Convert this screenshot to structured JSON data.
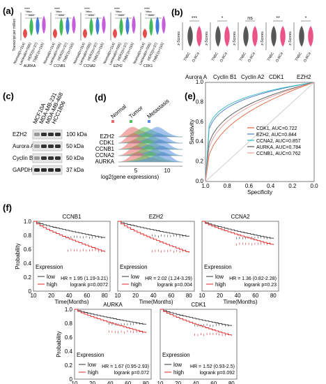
{
  "panels": {
    "a": "(a)",
    "b": "(b)",
    "c": "(c)",
    "d": "(d)",
    "e": "(e)",
    "f": "(f)"
  },
  "panel_a": {
    "ylabel": "Transcript per million",
    "genes": [
      "AURKA",
      "CCNB1",
      "CCNA2",
      "EZH2",
      "CDK1"
    ],
    "groups": [
      "Normal(n=114)",
      "Luminal(n=566)",
      "HER2(n=37)",
      "TNBC(n=116)"
    ],
    "sig": "****",
    "colors": [
      "#e23a3a",
      "#2db34a",
      "#2f6fd6",
      "#c04bd6"
    ]
  },
  "panel_b": {
    "ylabel": "z-Scores",
    "groups": [
      "TNBC",
      "O-BCa"
    ],
    "genes": [
      {
        "name": "Aurora A",
        "sig": "***"
      },
      {
        "name": "Cyclin B1",
        "sig": "*"
      },
      {
        "name": "Cyclin A2",
        "sig": "ns"
      },
      {
        "name": "CDK1",
        "sig": "**"
      },
      {
        "name": "EZH2",
        "sig": "*"
      }
    ],
    "colors": [
      "#444444",
      "#e8417a"
    ]
  },
  "panel_c": {
    "cell_lines": [
      "MCF10A",
      "MDA-MB-231",
      "MDA-MB-468",
      "HCC1806"
    ],
    "rows": [
      {
        "name": "EZH2",
        "kda": "100 kDa"
      },
      {
        "name": "Aurora A",
        "kda": "50 kDa"
      },
      {
        "name": "Cyclin B1",
        "kda": "50 kDa"
      },
      {
        "name": "GAPDH",
        "kda": "37 kDa"
      }
    ]
  },
  "panel_d": {
    "legend": [
      {
        "name": "Normal",
        "color": "#e86a6a"
      },
      {
        "name": "Tumor",
        "color": "#4fbf5a"
      },
      {
        "name": "Metastasis",
        "color": "#5b8fe0"
      }
    ],
    "genes": [
      "EZH2",
      "CDK1",
      "CCNB1",
      "CCNA2",
      "AURKA"
    ],
    "xlabel": "log2(gene expressions)",
    "ticks": [
      "5",
      "10"
    ]
  },
  "chart_data": {
    "type": "line",
    "xlabel": "Specificity",
    "ylabel": "Sensitivity",
    "xticks": [
      "1.0",
      "0.8",
      "0.6",
      "0.4",
      "0.2",
      "0.0"
    ],
    "yticks": [
      "0.0",
      "0.2",
      "0.4",
      "0.6",
      "0.8",
      "1.0"
    ],
    "xlim": [
      1.0,
      0.0
    ],
    "ylim": [
      0.0,
      1.0
    ],
    "legend_position": "bottom-right",
    "series": [
      {
        "name": "CDK1, AUC=0.722",
        "color": "#e0623a",
        "auc": 0.722
      },
      {
        "name": "EZH2, AUC=0.844",
        "color": "#4a78d0",
        "auc": 0.844
      },
      {
        "name": "CCNA2, AUC=0.857",
        "color": "#2fb8b8",
        "auc": 0.857
      },
      {
        "name": "AURKA, AUC=0.784",
        "color": "#555555",
        "auc": 0.784
      },
      {
        "name": "CCNB1, AUC=0.762",
        "color": "#e89a9a",
        "auc": 0.762
      }
    ]
  },
  "panel_f": {
    "ylabel": "Probability",
    "xlabel": "Time(Months)",
    "legend_title": "Expression",
    "low_label": "low",
    "high_label": "high",
    "yticks": [
      "1.0",
      "0.8",
      "0.6",
      "0.4",
      "0.2",
      "0"
    ],
    "xticks": [
      "10",
      "20",
      "40",
      "60",
      "80"
    ],
    "plots": [
      {
        "title": "CCNB1",
        "hr": "HR = 1.95 (1.19-3.21)",
        "p": "logrank p=0.0072",
        "low_end": 0.76,
        "high_end": 0.56
      },
      {
        "title": "EZH2",
        "hr": "HR = 2.02 (1.24-3.29)",
        "p": "logrank p=0.004",
        "low_end": 0.78,
        "high_end": 0.55
      },
      {
        "title": "CCNA2",
        "hr": "HR = 1.36 (0.82-2.28)",
        "p": "logrank p=0.23",
        "low_end": 0.75,
        "high_end": 0.66
      },
      {
        "title": "AURKA",
        "hr": "HR = 1.67 (0.95-2.93)",
        "p": "logrank p=0.072",
        "low_end": 0.78,
        "high_end": 0.66
      },
      {
        "title": "CDK1",
        "hr": "HR = 1.52 (0.93-2.5)",
        "p": "logrank p=0.092",
        "low_end": 0.76,
        "high_end": 0.62
      }
    ]
  }
}
